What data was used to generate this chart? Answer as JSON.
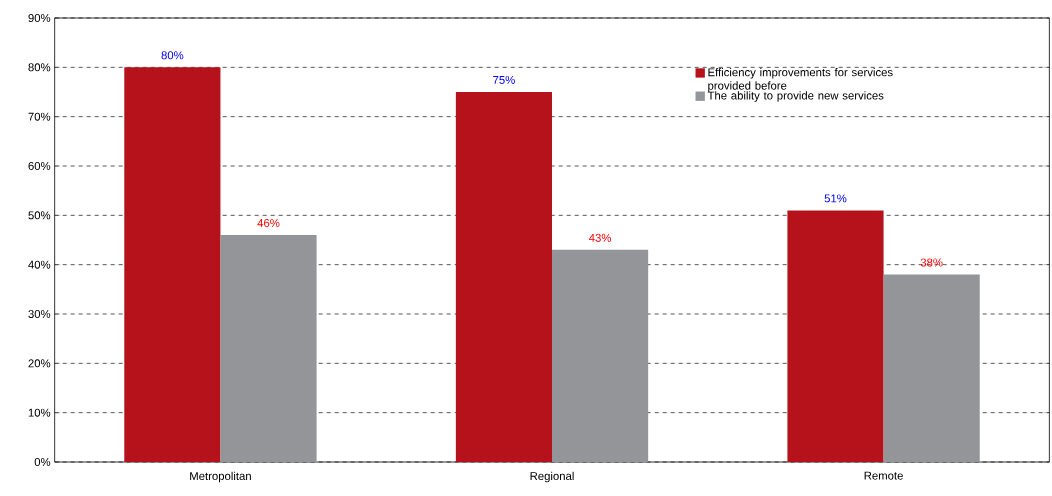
{
  "chart_data": {
    "type": "bar",
    "categories": [
      "Metropolitan",
      "Regional",
      "Remote"
    ],
    "series": [
      {
        "name": "Efficiency improvements for services provided before",
        "color": "#b5121b",
        "values": [
          80,
          75,
          51
        ],
        "value_labels": [
          "80%",
          "75%",
          "51%"
        ]
      },
      {
        "name": "The ability to provide new services",
        "color": "#939598",
        "values": [
          46,
          43,
          38
        ],
        "value_labels": [
          "46%",
          "43%",
          "38%"
        ]
      }
    ],
    "ylim": [
      0,
      90
    ],
    "yticks": [
      {
        "value": 0,
        "label": "0%"
      },
      {
        "value": 10,
        "label": "10%"
      },
      {
        "value": 20,
        "label": "20%"
      },
      {
        "value": 30,
        "label": "30%"
      },
      {
        "value": 40,
        "label": "40%"
      },
      {
        "value": 50,
        "label": "50%"
      },
      {
        "value": 60,
        "label": "60%"
      },
      {
        "value": 70,
        "label": "70%"
      },
      {
        "value": 80,
        "label": "80%"
      },
      {
        "value": 90,
        "label": "90%"
      }
    ],
    "grid": "y",
    "legend": "top right"
  }
}
